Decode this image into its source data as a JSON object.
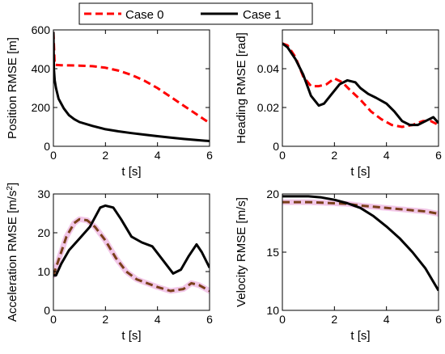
{
  "legend": {
    "entries": [
      {
        "name": "Case 0",
        "color": "#ff0000",
        "style": "dashed"
      },
      {
        "name": "Case 1",
        "color": "#000000",
        "style": "solid"
      }
    ]
  },
  "chart_data": [
    {
      "type": "line",
      "id": "position",
      "xlabel": "t [s]",
      "ylabel": "Position RMSE [m]",
      "xlim": [
        0,
        6
      ],
      "ylim": [
        0,
        600
      ],
      "xticks": [
        0,
        2,
        4,
        6
      ],
      "yticks": [
        0,
        200,
        400,
        600
      ],
      "grid": false,
      "series": [
        {
          "name": "Case 0",
          "color": "#ff0000",
          "style": "dashed",
          "x": [
            0,
            0.05,
            0.3,
            0.6,
            1.0,
            1.5,
            2.0,
            2.5,
            3.0,
            3.5,
            4.0,
            4.5,
            5.0,
            5.5,
            6.0
          ],
          "y": [
            590,
            420,
            418,
            417,
            416,
            413,
            405,
            390,
            368,
            338,
            300,
            255,
            210,
            165,
            120
          ]
        },
        {
          "name": "Case 1",
          "color": "#000000",
          "style": "solid",
          "x": [
            0,
            0.02,
            0.05,
            0.1,
            0.2,
            0.4,
            0.6,
            0.8,
            1.0,
            1.5,
            2.0,
            2.5,
            3.0,
            3.5,
            4.0,
            4.5,
            5.0,
            5.5,
            6.0
          ],
          "y": [
            590,
            400,
            340,
            300,
            245,
            195,
            160,
            140,
            125,
            105,
            88,
            77,
            68,
            60,
            52,
            45,
            38,
            32,
            27
          ]
        }
      ]
    },
    {
      "type": "line",
      "id": "heading",
      "xlabel": "t [s]",
      "ylabel": "Heading RMSE [rad]",
      "xlim": [
        0,
        6
      ],
      "ylim": [
        0,
        0.06
      ],
      "xticks": [
        0,
        2,
        4,
        6
      ],
      "yticks": [
        0,
        0.02,
        0.04
      ],
      "ytick_labels": [
        "0",
        "0.02",
        "0.04"
      ],
      "grid": false,
      "series": [
        {
          "name": "Case 0",
          "color": "#ff0000",
          "style": "dashed",
          "x": [
            0,
            0.2,
            0.5,
            0.8,
            1.1,
            1.4,
            1.7,
            2.0,
            2.3,
            2.6,
            3.0,
            3.4,
            3.8,
            4.2,
            4.6,
            5.0,
            5.4,
            5.7,
            6.0
          ],
          "y": [
            0.053,
            0.052,
            0.046,
            0.036,
            0.031,
            0.031,
            0.032,
            0.035,
            0.033,
            0.029,
            0.024,
            0.018,
            0.014,
            0.011,
            0.01,
            0.011,
            0.013,
            0.013,
            0.011
          ]
        },
        {
          "name": "Case 1",
          "color": "#000000",
          "style": "solid",
          "x": [
            0,
            0.2,
            0.5,
            0.8,
            1.1,
            1.4,
            1.6,
            1.9,
            2.2,
            2.5,
            2.8,
            3.0,
            3.3,
            3.6,
            4.0,
            4.3,
            4.6,
            4.9,
            5.2,
            5.5,
            5.8,
            6.0
          ],
          "y": [
            0.053,
            0.051,
            0.045,
            0.037,
            0.026,
            0.021,
            0.022,
            0.027,
            0.032,
            0.034,
            0.033,
            0.03,
            0.027,
            0.025,
            0.022,
            0.018,
            0.013,
            0.011,
            0.011,
            0.013,
            0.015,
            0.012
          ]
        }
      ]
    },
    {
      "type": "line",
      "id": "acceleration",
      "xlabel": "t [s]",
      "ylabel": "Acceleration RMSE [m/s",
      "ylabel_sup": "2",
      "ylabel_end": "]",
      "xlim": [
        0,
        6
      ],
      "ylim": [
        0,
        30
      ],
      "xticks": [
        0,
        2,
        4,
        6
      ],
      "yticks": [
        0,
        10,
        20,
        30
      ],
      "grid": false,
      "series": [
        {
          "name": "Case 0",
          "color": "#7a3f1a",
          "style": "dashed",
          "halo": "#f2c7e8",
          "x": [
            0,
            0.2,
            0.5,
            0.8,
            1.0,
            1.3,
            1.6,
            2.0,
            2.4,
            2.8,
            3.2,
            3.6,
            4.0,
            4.5,
            5.0,
            5.3,
            5.6,
            6.0
          ],
          "y": [
            9,
            13,
            19,
            22.5,
            23.5,
            23.2,
            21.5,
            18,
            13.5,
            10,
            8,
            7,
            6,
            5,
            5.5,
            7,
            6.5,
            5
          ]
        },
        {
          "name": "Case 1",
          "color": "#000000",
          "style": "solid",
          "x": [
            0,
            0.1,
            0.3,
            0.6,
            1.0,
            1.4,
            1.8,
            2.0,
            2.3,
            2.6,
            3.0,
            3.4,
            3.8,
            4.2,
            4.6,
            4.9,
            5.2,
            5.5,
            5.7,
            6.0
          ],
          "y": [
            9,
            9,
            12,
            15.5,
            18.5,
            21.5,
            26.5,
            27,
            26.5,
            23.5,
            19,
            17.5,
            16.5,
            13,
            9.5,
            10.5,
            14,
            17,
            15,
            11
          ]
        }
      ]
    },
    {
      "type": "line",
      "id": "velocity",
      "xlabel": "t [s]",
      "ylabel": "Velocity RMSE [m/s]",
      "xlim": [
        0,
        6
      ],
      "ylim": [
        10,
        20
      ],
      "xticks": [
        0,
        2,
        4,
        6
      ],
      "yticks": [
        10,
        15,
        20
      ],
      "grid": false,
      "series": [
        {
          "name": "Case 0",
          "color": "#7a3f1a",
          "style": "dashed",
          "halo": "#f2c7e8",
          "x": [
            0,
            0.5,
            1.0,
            1.5,
            2.0,
            2.5,
            3.0,
            3.5,
            4.0,
            4.5,
            5.0,
            5.5,
            6.0
          ],
          "y": [
            19.3,
            19.3,
            19.3,
            19.25,
            19.2,
            19.15,
            19.0,
            18.9,
            18.8,
            18.7,
            18.6,
            18.5,
            18.3
          ]
        },
        {
          "name": "Case 1",
          "color": "#000000",
          "style": "solid",
          "x": [
            0,
            0.5,
            1.0,
            1.5,
            2.0,
            2.5,
            3.0,
            3.5,
            4.0,
            4.5,
            5.0,
            5.5,
            6.0
          ],
          "y": [
            19.8,
            19.8,
            19.8,
            19.7,
            19.5,
            19.2,
            18.8,
            18.1,
            17.2,
            16.2,
            15.0,
            13.6,
            11.7
          ]
        }
      ]
    }
  ]
}
